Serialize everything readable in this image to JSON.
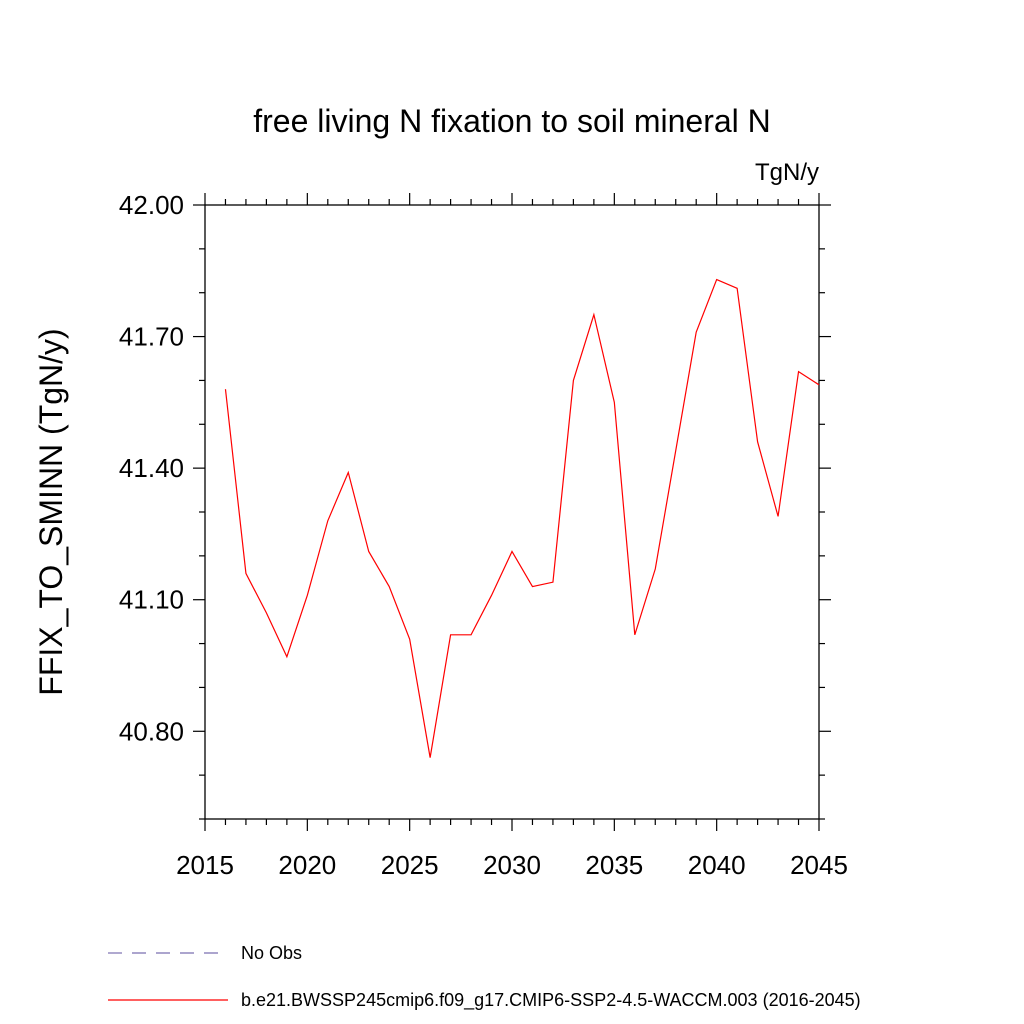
{
  "chart_data": {
    "type": "line",
    "title": "free living N fixation to soil mineral N",
    "units_label": "TgN/y",
    "ylabel": "FFIX_TO_SMINN  (TgN/y)",
    "xlabel": "",
    "xlim": [
      2015,
      2045
    ],
    "ylim": [
      40.6,
      42.0
    ],
    "x_ticks": [
      2015,
      2020,
      2025,
      2030,
      2035,
      2040,
      2045
    ],
    "x_tick_labels": [
      "2015",
      "2020",
      "2025",
      "2030",
      "2035",
      "2040",
      "2045"
    ],
    "y_ticks": [
      40.8,
      41.1,
      41.4,
      41.7,
      42.0
    ],
    "y_tick_labels": [
      "40.80",
      "41.10",
      "41.40",
      "41.70",
      "42.00"
    ],
    "grid": false,
    "legend_position": "bottom",
    "series": [
      {
        "name": "No Obs",
        "color": "#7b6fb0",
        "dash": true,
        "x": [],
        "y": []
      },
      {
        "name": "b.e21.BWSSP245cmip6.f09_g17.CMIP6-SSP2-4.5-WACCM.003 (2016-2045)",
        "color": "#ff0000",
        "dash": false,
        "x": [
          2016,
          2017,
          2018,
          2019,
          2020,
          2021,
          2022,
          2023,
          2024,
          2025,
          2026,
          2027,
          2028,
          2029,
          2030,
          2031,
          2032,
          2033,
          2034,
          2035,
          2036,
          2037,
          2038,
          2039,
          2040,
          2041,
          2042,
          2043,
          2044,
          2045
        ],
        "y": [
          41.58,
          41.16,
          41.07,
          40.97,
          41.11,
          41.28,
          41.39,
          41.21,
          41.13,
          41.01,
          40.74,
          41.02,
          41.02,
          41.11,
          41.21,
          41.13,
          41.14,
          41.6,
          41.75,
          41.55,
          41.02,
          41.17,
          41.44,
          41.71,
          41.83,
          41.81,
          41.46,
          41.29,
          41.62,
          41.59
        ]
      }
    ]
  }
}
